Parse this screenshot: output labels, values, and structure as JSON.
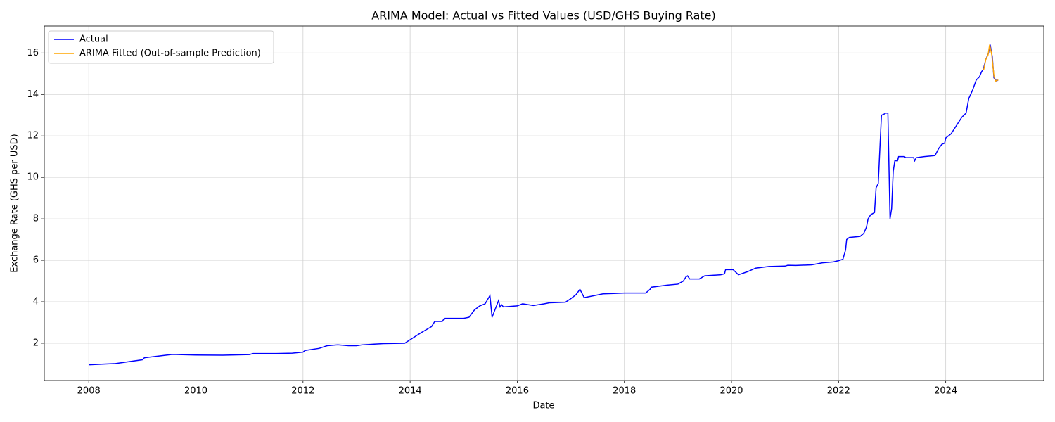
{
  "chart_data": {
    "type": "line",
    "title": "ARIMA Model: Actual vs Fitted Values (USD/GHS Buying Rate)",
    "x_label": "Date",
    "y_label": "Exchange Rate (GHS per USD)",
    "xlim": [
      2007.17,
      2025.83
    ],
    "xticks": [
      2008,
      2010,
      2012,
      2014,
      2016,
      2018,
      2020,
      2022,
      2024
    ],
    "ylim": [
      0.2,
      17.3
    ],
    "yticks": [
      2,
      4,
      6,
      8,
      10,
      12,
      14,
      16
    ],
    "grid": true,
    "legend": "upper left",
    "series": [
      {
        "name": "Actual",
        "color": "#0000ff",
        "x": [
          2008.0,
          2008.5,
          2009.0,
          2009.04,
          2009.3,
          2009.56,
          2010.0,
          2010.5,
          2011.0,
          2011.07,
          2011.5,
          2011.8,
          2012.0,
          2012.04,
          2012.3,
          2012.45,
          2012.65,
          2012.85,
          2013.0,
          2013.1,
          2013.5,
          2013.9,
          2013.96,
          2014.2,
          2014.4,
          2014.46,
          2014.6,
          2014.64,
          2015.0,
          2015.1,
          2015.2,
          2015.3,
          2015.4,
          2015.49,
          2015.53,
          2015.65,
          2015.68,
          2015.71,
          2015.74,
          2016.0,
          2016.1,
          2016.3,
          2016.5,
          2016.6,
          2016.9,
          2017.0,
          2017.1,
          2017.17,
          2017.25,
          2017.35,
          2017.6,
          2017.8,
          2018.0,
          2018.4,
          2018.48,
          2018.5,
          2018.8,
          2019.0,
          2019.1,
          2019.15,
          2019.18,
          2019.22,
          2019.4,
          2019.5,
          2019.8,
          2019.87,
          2019.89,
          2020.03,
          2020.13,
          2020.3,
          2020.45,
          2020.7,
          2021.0,
          2021.05,
          2021.2,
          2021.5,
          2021.7,
          2021.9,
          2022.0,
          2022.08,
          2022.13,
          2022.15,
          2022.2,
          2022.4,
          2022.47,
          2022.52,
          2022.55,
          2022.6,
          2022.67,
          2022.7,
          2022.74,
          2022.76,
          2022.8,
          2022.85,
          2022.88,
          2022.92,
          2022.96,
          2022.99,
          2023.02,
          2023.05,
          2023.1,
          2023.12,
          2023.23,
          2023.25,
          2023.4,
          2023.42,
          2023.45,
          2023.6,
          2023.8,
          2023.87,
          2023.93,
          2023.98,
          2024.0,
          2024.1,
          2024.2,
          2024.3,
          2024.38,
          2024.43,
          2024.5,
          2024.57,
          2024.63,
          2024.67,
          2024.7,
          2024.75,
          2024.8,
          2024.83,
          2024.87,
          2024.9,
          2024.95,
          2024.98
        ],
        "values": [
          0.96,
          1.02,
          1.2,
          1.3,
          1.38,
          1.46,
          1.43,
          1.42,
          1.45,
          1.5,
          1.5,
          1.52,
          1.57,
          1.65,
          1.75,
          1.88,
          1.92,
          1.88,
          1.88,
          1.92,
          1.98,
          2.0,
          2.1,
          2.5,
          2.8,
          3.05,
          3.05,
          3.2,
          3.2,
          3.25,
          3.6,
          3.8,
          3.9,
          4.3,
          3.25,
          4.05,
          3.75,
          3.85,
          3.75,
          3.8,
          3.9,
          3.82,
          3.9,
          3.95,
          3.98,
          4.15,
          4.35,
          4.6,
          4.2,
          4.25,
          4.38,
          4.4,
          4.42,
          4.42,
          4.6,
          4.7,
          4.8,
          4.85,
          5.0,
          5.2,
          5.25,
          5.1,
          5.1,
          5.25,
          5.3,
          5.35,
          5.55,
          5.55,
          5.3,
          5.45,
          5.62,
          5.7,
          5.72,
          5.76,
          5.75,
          5.78,
          5.88,
          5.92,
          5.98,
          6.05,
          6.5,
          7.0,
          7.1,
          7.15,
          7.3,
          7.6,
          8.0,
          8.2,
          8.3,
          9.5,
          9.7,
          10.8,
          13.0,
          13.05,
          13.1,
          13.1,
          8.0,
          8.5,
          10.3,
          10.8,
          10.8,
          11.0,
          11.0,
          10.95,
          10.95,
          10.8,
          10.95,
          11.0,
          11.05,
          11.4,
          11.6,
          11.65,
          11.9,
          12.1,
          12.5,
          12.9,
          13.1,
          13.8,
          14.2,
          14.7,
          14.85,
          15.1,
          15.2,
          15.7,
          16.0,
          16.4,
          15.8,
          14.8,
          14.65,
          14.7
        ]
      },
      {
        "name": "ARIMA Fitted (Out-of-sample Prediction)",
        "color": "#ffa500",
        "x": [
          2024.71,
          2024.75,
          2024.79,
          2024.82,
          2024.86,
          2024.9,
          2024.93,
          2024.98
        ],
        "values": [
          15.2,
          15.7,
          15.9,
          16.4,
          15.9,
          14.9,
          14.65,
          14.7
        ]
      }
    ]
  }
}
